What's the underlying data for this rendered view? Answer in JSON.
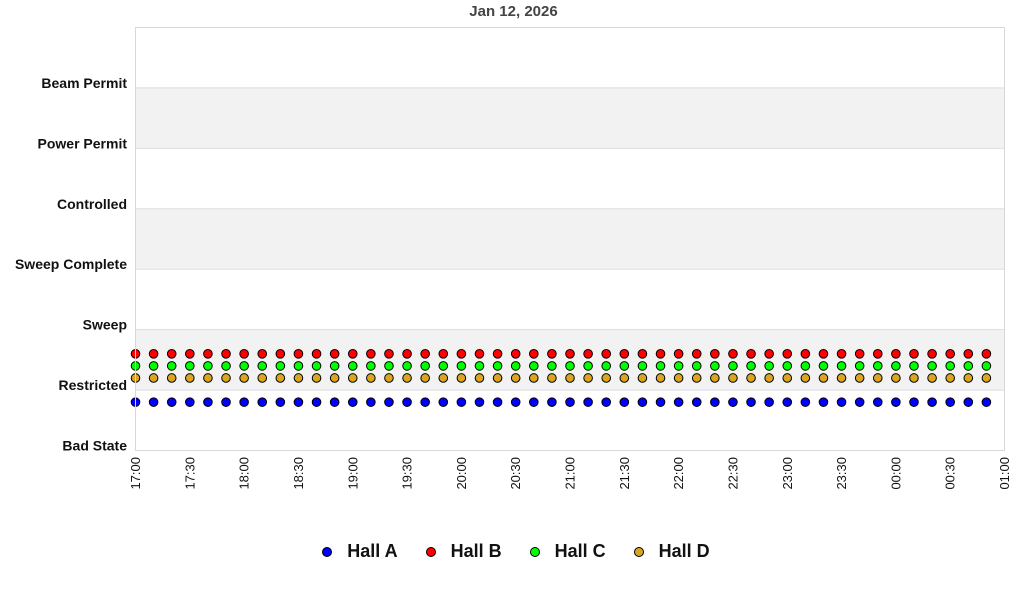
{
  "chart_data": {
    "type": "scatter",
    "title": "Jan 12, 2026",
    "xlabel": "",
    "ylabel": "",
    "x_ticks": [
      "17:00",
      "17:30",
      "18:00",
      "18:30",
      "19:00",
      "19:30",
      "20:00",
      "20:30",
      "21:00",
      "21:30",
      "22:00",
      "22:30",
      "23:00",
      "23:30",
      "00:00",
      "00:30",
      "01:00"
    ],
    "xlim": [
      "17:00",
      "01:00"
    ],
    "y_categories": [
      "Bad State",
      "Restricted",
      "Sweep",
      "Sweep Complete",
      "Controlled",
      "Power Permit",
      "Beam Permit"
    ],
    "ylim": [
      0,
      7
    ],
    "grid": "alternating horizontal bands",
    "legend_position": "bottom",
    "sample_interval_minutes": 10,
    "x": [
      "17:00",
      "17:10",
      "17:20",
      "17:30",
      "17:40",
      "17:50",
      "18:00",
      "18:10",
      "18:20",
      "18:30",
      "18:40",
      "18:50",
      "19:00",
      "19:10",
      "19:20",
      "19:30",
      "19:40",
      "19:50",
      "20:00",
      "20:10",
      "20:20",
      "20:30",
      "20:40",
      "20:50",
      "21:00",
      "21:10",
      "21:20",
      "21:30",
      "21:40",
      "21:50",
      "22:00",
      "22:10",
      "22:20",
      "22:30",
      "22:40",
      "22:50",
      "23:00",
      "23:10",
      "23:20",
      "23:30",
      "23:40",
      "23:50",
      "00:00",
      "00:10",
      "00:20",
      "00:30",
      "00:40",
      "00:50"
    ],
    "series": [
      {
        "name": "Hall A",
        "color": "#0000ff",
        "state": "Restricted",
        "value": 1,
        "plot_offset": -0.2
      },
      {
        "name": "Hall B",
        "color": "#ff0000",
        "state": "Restricted",
        "value": 1,
        "plot_offset": 0.6
      },
      {
        "name": "Hall C",
        "color": "#00ff00",
        "state": "Restricted",
        "value": 1,
        "plot_offset": 0.4
      },
      {
        "name": "Hall D",
        "color": "#daa520",
        "state": "Restricted",
        "value": 1,
        "plot_offset": 0.2
      }
    ]
  },
  "legend": {
    "items": [
      {
        "label": "Hall A",
        "color": "#0000ff"
      },
      {
        "label": "Hall B",
        "color": "#ff0000"
      },
      {
        "label": "Hall C",
        "color": "#00ff00"
      },
      {
        "label": "Hall D",
        "color": "#daa520"
      }
    ]
  },
  "colors": {
    "band_shade": "#f2f2f2",
    "grid_line": "#dddddd",
    "plot_border": "#d8d8d8"
  }
}
